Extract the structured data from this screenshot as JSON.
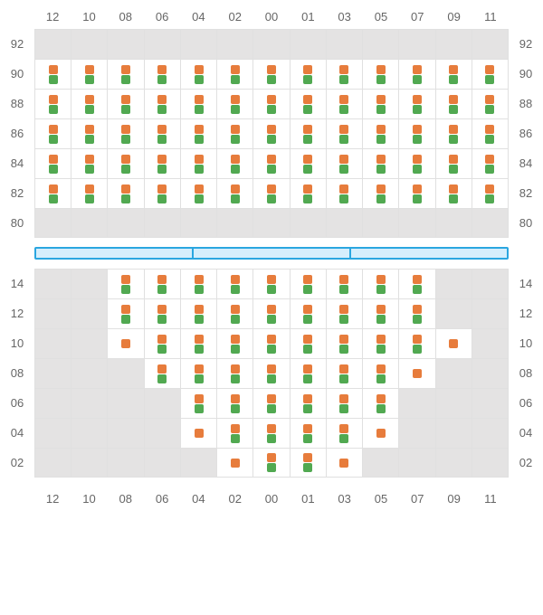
{
  "colors": {
    "marker_a": "#e77c3c",
    "marker_b": "#51a951",
    "divider_border": "#2aa6e0",
    "divider_fill": "#d5eefc"
  },
  "columns": [
    "12",
    "10",
    "08",
    "06",
    "04",
    "02",
    "00",
    "01",
    "03",
    "05",
    "07",
    "09",
    "11"
  ],
  "top_section": {
    "row_labels": [
      "92",
      "90",
      "88",
      "86",
      "84",
      "82",
      "80"
    ],
    "rows": [
      {
        "label": "92",
        "cells": [
          {
            "active": false
          },
          {
            "active": false
          },
          {
            "active": false
          },
          {
            "active": false
          },
          {
            "active": false
          },
          {
            "active": false
          },
          {
            "active": false
          },
          {
            "active": false
          },
          {
            "active": false
          },
          {
            "active": false
          },
          {
            "active": false
          },
          {
            "active": false
          },
          {
            "active": false
          }
        ]
      },
      {
        "label": "90",
        "cells": [
          {
            "active": true,
            "markers": [
              "a",
              "b"
            ]
          },
          {
            "active": true,
            "markers": [
              "a",
              "b"
            ]
          },
          {
            "active": true,
            "markers": [
              "a",
              "b"
            ]
          },
          {
            "active": true,
            "markers": [
              "a",
              "b"
            ]
          },
          {
            "active": true,
            "markers": [
              "a",
              "b"
            ]
          },
          {
            "active": true,
            "markers": [
              "a",
              "b"
            ]
          },
          {
            "active": true,
            "markers": [
              "a",
              "b"
            ]
          },
          {
            "active": true,
            "markers": [
              "a",
              "b"
            ]
          },
          {
            "active": true,
            "markers": [
              "a",
              "b"
            ]
          },
          {
            "active": true,
            "markers": [
              "a",
              "b"
            ]
          },
          {
            "active": true,
            "markers": [
              "a",
              "b"
            ]
          },
          {
            "active": true,
            "markers": [
              "a",
              "b"
            ]
          },
          {
            "active": true,
            "markers": [
              "a",
              "b"
            ]
          }
        ]
      },
      {
        "label": "88",
        "cells": [
          {
            "active": true,
            "markers": [
              "a",
              "b"
            ]
          },
          {
            "active": true,
            "markers": [
              "a",
              "b"
            ]
          },
          {
            "active": true,
            "markers": [
              "a",
              "b"
            ]
          },
          {
            "active": true,
            "markers": [
              "a",
              "b"
            ]
          },
          {
            "active": true,
            "markers": [
              "a",
              "b"
            ]
          },
          {
            "active": true,
            "markers": [
              "a",
              "b"
            ]
          },
          {
            "active": true,
            "markers": [
              "a",
              "b"
            ]
          },
          {
            "active": true,
            "markers": [
              "a",
              "b"
            ]
          },
          {
            "active": true,
            "markers": [
              "a",
              "b"
            ]
          },
          {
            "active": true,
            "markers": [
              "a",
              "b"
            ]
          },
          {
            "active": true,
            "markers": [
              "a",
              "b"
            ]
          },
          {
            "active": true,
            "markers": [
              "a",
              "b"
            ]
          },
          {
            "active": true,
            "markers": [
              "a",
              "b"
            ]
          }
        ]
      },
      {
        "label": "86",
        "cells": [
          {
            "active": true,
            "markers": [
              "a",
              "b"
            ]
          },
          {
            "active": true,
            "markers": [
              "a",
              "b"
            ]
          },
          {
            "active": true,
            "markers": [
              "a",
              "b"
            ]
          },
          {
            "active": true,
            "markers": [
              "a",
              "b"
            ]
          },
          {
            "active": true,
            "markers": [
              "a",
              "b"
            ]
          },
          {
            "active": true,
            "markers": [
              "a",
              "b"
            ]
          },
          {
            "active": true,
            "markers": [
              "a",
              "b"
            ]
          },
          {
            "active": true,
            "markers": [
              "a",
              "b"
            ]
          },
          {
            "active": true,
            "markers": [
              "a",
              "b"
            ]
          },
          {
            "active": true,
            "markers": [
              "a",
              "b"
            ]
          },
          {
            "active": true,
            "markers": [
              "a",
              "b"
            ]
          },
          {
            "active": true,
            "markers": [
              "a",
              "b"
            ]
          },
          {
            "active": true,
            "markers": [
              "a",
              "b"
            ]
          }
        ]
      },
      {
        "label": "84",
        "cells": [
          {
            "active": true,
            "markers": [
              "a",
              "b"
            ]
          },
          {
            "active": true,
            "markers": [
              "a",
              "b"
            ]
          },
          {
            "active": true,
            "markers": [
              "a",
              "b"
            ]
          },
          {
            "active": true,
            "markers": [
              "a",
              "b"
            ]
          },
          {
            "active": true,
            "markers": [
              "a",
              "b"
            ]
          },
          {
            "active": true,
            "markers": [
              "a",
              "b"
            ]
          },
          {
            "active": true,
            "markers": [
              "a",
              "b"
            ]
          },
          {
            "active": true,
            "markers": [
              "a",
              "b"
            ]
          },
          {
            "active": true,
            "markers": [
              "a",
              "b"
            ]
          },
          {
            "active": true,
            "markers": [
              "a",
              "b"
            ]
          },
          {
            "active": true,
            "markers": [
              "a",
              "b"
            ]
          },
          {
            "active": true,
            "markers": [
              "a",
              "b"
            ]
          },
          {
            "active": true,
            "markers": [
              "a",
              "b"
            ]
          }
        ]
      },
      {
        "label": "82",
        "cells": [
          {
            "active": true,
            "markers": [
              "a",
              "b"
            ]
          },
          {
            "active": true,
            "markers": [
              "a",
              "b"
            ]
          },
          {
            "active": true,
            "markers": [
              "a",
              "b"
            ]
          },
          {
            "active": true,
            "markers": [
              "a",
              "b"
            ]
          },
          {
            "active": true,
            "markers": [
              "a",
              "b"
            ]
          },
          {
            "active": true,
            "markers": [
              "a",
              "b"
            ]
          },
          {
            "active": true,
            "markers": [
              "a",
              "b"
            ]
          },
          {
            "active": true,
            "markers": [
              "a",
              "b"
            ]
          },
          {
            "active": true,
            "markers": [
              "a",
              "b"
            ]
          },
          {
            "active": true,
            "markers": [
              "a",
              "b"
            ]
          },
          {
            "active": true,
            "markers": [
              "a",
              "b"
            ]
          },
          {
            "active": true,
            "markers": [
              "a",
              "b"
            ]
          },
          {
            "active": true,
            "markers": [
              "a",
              "b"
            ]
          }
        ]
      },
      {
        "label": "80",
        "cells": [
          {
            "active": false
          },
          {
            "active": false
          },
          {
            "active": false
          },
          {
            "active": false
          },
          {
            "active": false
          },
          {
            "active": false
          },
          {
            "active": false
          },
          {
            "active": false
          },
          {
            "active": false
          },
          {
            "active": false
          },
          {
            "active": false
          },
          {
            "active": false
          },
          {
            "active": false
          }
        ]
      }
    ]
  },
  "divider": {
    "segments": 3
  },
  "bottom_section": {
    "row_labels": [
      "14",
      "12",
      "10",
      "08",
      "06",
      "04",
      "02"
    ],
    "rows": [
      {
        "label": "14",
        "cells": [
          {
            "active": false
          },
          {
            "active": false
          },
          {
            "active": true,
            "markers": [
              "a",
              "b"
            ]
          },
          {
            "active": true,
            "markers": [
              "a",
              "b"
            ]
          },
          {
            "active": true,
            "markers": [
              "a",
              "b"
            ]
          },
          {
            "active": true,
            "markers": [
              "a",
              "b"
            ]
          },
          {
            "active": true,
            "markers": [
              "a",
              "b"
            ]
          },
          {
            "active": true,
            "markers": [
              "a",
              "b"
            ]
          },
          {
            "active": true,
            "markers": [
              "a",
              "b"
            ]
          },
          {
            "active": true,
            "markers": [
              "a",
              "b"
            ]
          },
          {
            "active": true,
            "markers": [
              "a",
              "b"
            ]
          },
          {
            "active": false
          },
          {
            "active": false
          }
        ]
      },
      {
        "label": "12",
        "cells": [
          {
            "active": false
          },
          {
            "active": false
          },
          {
            "active": true,
            "markers": [
              "a",
              "b"
            ]
          },
          {
            "active": true,
            "markers": [
              "a",
              "b"
            ]
          },
          {
            "active": true,
            "markers": [
              "a",
              "b"
            ]
          },
          {
            "active": true,
            "markers": [
              "a",
              "b"
            ]
          },
          {
            "active": true,
            "markers": [
              "a",
              "b"
            ]
          },
          {
            "active": true,
            "markers": [
              "a",
              "b"
            ]
          },
          {
            "active": true,
            "markers": [
              "a",
              "b"
            ]
          },
          {
            "active": true,
            "markers": [
              "a",
              "b"
            ]
          },
          {
            "active": true,
            "markers": [
              "a",
              "b"
            ]
          },
          {
            "active": false
          },
          {
            "active": false
          }
        ]
      },
      {
        "label": "10",
        "cells": [
          {
            "active": false
          },
          {
            "active": false
          },
          {
            "active": true,
            "markers": [
              "a"
            ]
          },
          {
            "active": true,
            "markers": [
              "a",
              "b"
            ]
          },
          {
            "active": true,
            "markers": [
              "a",
              "b"
            ]
          },
          {
            "active": true,
            "markers": [
              "a",
              "b"
            ]
          },
          {
            "active": true,
            "markers": [
              "a",
              "b"
            ]
          },
          {
            "active": true,
            "markers": [
              "a",
              "b"
            ]
          },
          {
            "active": true,
            "markers": [
              "a",
              "b"
            ]
          },
          {
            "active": true,
            "markers": [
              "a",
              "b"
            ]
          },
          {
            "active": true,
            "markers": [
              "a",
              "b"
            ]
          },
          {
            "active": true,
            "markers": [
              "a"
            ]
          },
          {
            "active": false
          }
        ]
      },
      {
        "label": "08",
        "cells": [
          {
            "active": false
          },
          {
            "active": false
          },
          {
            "active": false
          },
          {
            "active": true,
            "markers": [
              "a",
              "b"
            ]
          },
          {
            "active": true,
            "markers": [
              "a",
              "b"
            ]
          },
          {
            "active": true,
            "markers": [
              "a",
              "b"
            ]
          },
          {
            "active": true,
            "markers": [
              "a",
              "b"
            ]
          },
          {
            "active": true,
            "markers": [
              "a",
              "b"
            ]
          },
          {
            "active": true,
            "markers": [
              "a",
              "b"
            ]
          },
          {
            "active": true,
            "markers": [
              "a",
              "b"
            ]
          },
          {
            "active": true,
            "markers": [
              "a"
            ]
          },
          {
            "active": false
          },
          {
            "active": false
          }
        ]
      },
      {
        "label": "06",
        "cells": [
          {
            "active": false
          },
          {
            "active": false
          },
          {
            "active": false
          },
          {
            "active": false
          },
          {
            "active": true,
            "markers": [
              "a",
              "b"
            ]
          },
          {
            "active": true,
            "markers": [
              "a",
              "b"
            ]
          },
          {
            "active": true,
            "markers": [
              "a",
              "b"
            ]
          },
          {
            "active": true,
            "markers": [
              "a",
              "b"
            ]
          },
          {
            "active": true,
            "markers": [
              "a",
              "b"
            ]
          },
          {
            "active": true,
            "markers": [
              "a",
              "b"
            ]
          },
          {
            "active": false
          },
          {
            "active": false
          },
          {
            "active": false
          }
        ]
      },
      {
        "label": "04",
        "cells": [
          {
            "active": false
          },
          {
            "active": false
          },
          {
            "active": false
          },
          {
            "active": false
          },
          {
            "active": true,
            "markers": [
              "a"
            ]
          },
          {
            "active": true,
            "markers": [
              "a",
              "b"
            ]
          },
          {
            "active": true,
            "markers": [
              "a",
              "b"
            ]
          },
          {
            "active": true,
            "markers": [
              "a",
              "b"
            ]
          },
          {
            "active": true,
            "markers": [
              "a",
              "b"
            ]
          },
          {
            "active": true,
            "markers": [
              "a"
            ]
          },
          {
            "active": false
          },
          {
            "active": false
          },
          {
            "active": false
          }
        ]
      },
      {
        "label": "02",
        "cells": [
          {
            "active": false
          },
          {
            "active": false
          },
          {
            "active": false
          },
          {
            "active": false
          },
          {
            "active": false
          },
          {
            "active": true,
            "markers": [
              "a"
            ]
          },
          {
            "active": true,
            "markers": [
              "a",
              "b"
            ]
          },
          {
            "active": true,
            "markers": [
              "a",
              "b"
            ]
          },
          {
            "active": true,
            "markers": [
              "a"
            ]
          },
          {
            "active": false
          },
          {
            "active": false
          },
          {
            "active": false
          },
          {
            "active": false
          }
        ]
      }
    ]
  }
}
